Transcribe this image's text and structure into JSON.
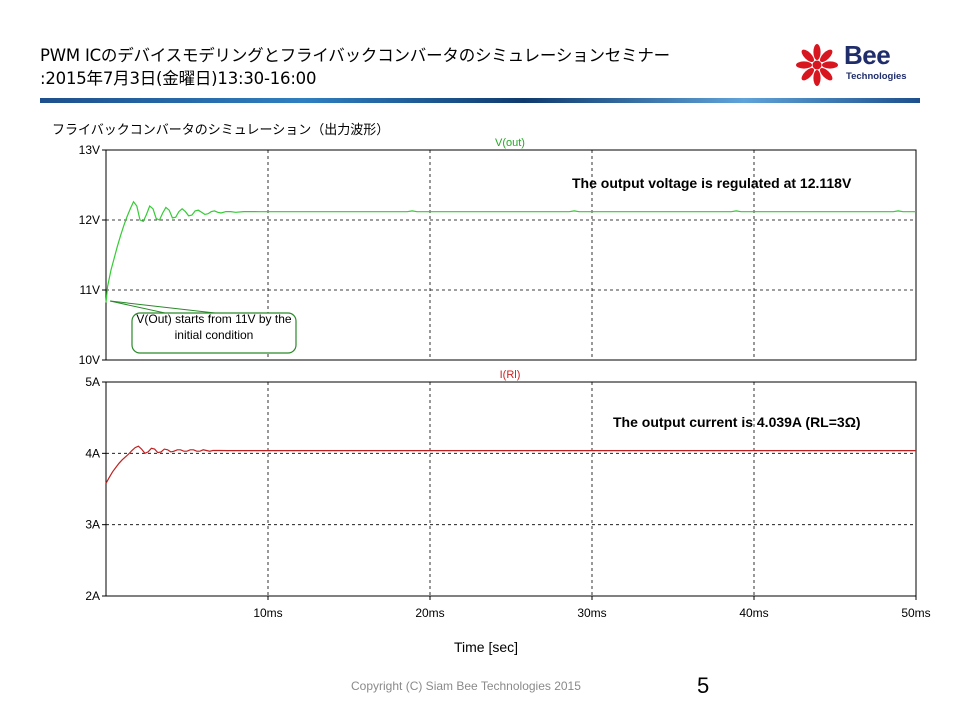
{
  "slide": {
    "title_line1": "PWM ICのデバイスモデリングとフライバックコンバータのシミュレーションセミナー",
    "title_line2": ":2015年7月3日(金曜日)13:30-16:00",
    "subtitle": "フライバックコンバータのシミュレーション（出力波形）",
    "footer": "Copyright (C) Siam Bee Technologies 2015",
    "page_number": "5",
    "logo_word": "Bee",
    "logo_sub": "Technologies"
  },
  "colors": {
    "brand": "#1f2d6b",
    "logo_red": "#d8161f",
    "vout": "#33cc33",
    "irl": "#cc2222",
    "grid": "#000000"
  },
  "chart_data": [
    {
      "type": "line",
      "series": [
        {
          "name": "V(out)",
          "x": [
            0,
            0.1,
            0.3,
            0.5,
            0.7,
            0.9,
            1.1,
            1.3,
            1.5,
            1.7,
            1.9,
            2.1,
            2.3,
            2.5,
            2.7,
            2.9,
            3.1,
            3.3,
            3.5,
            3.7,
            3.9,
            4.1,
            4.3,
            4.5,
            4.7,
            4.9,
            5.1,
            5.3,
            5.5,
            5.7,
            5.9,
            6.1,
            6.3,
            6.5,
            6.7,
            6.9,
            7.1,
            7.4,
            7.7,
            8.0,
            8.5,
            9.0,
            9.5,
            10.0,
            18.6,
            18.9,
            19.2,
            28.6,
            28.9,
            29.2,
            38.6,
            38.9,
            39.2,
            48.6,
            48.9,
            49.2,
            50.0
          ],
          "values": [
            10.82,
            11.05,
            11.28,
            11.45,
            11.62,
            11.78,
            11.92,
            12.05,
            12.16,
            12.26,
            12.2,
            12.0,
            11.98,
            12.08,
            12.2,
            12.16,
            12.02,
            12.0,
            12.1,
            12.18,
            12.14,
            12.03,
            12.04,
            12.12,
            12.16,
            12.12,
            12.06,
            12.07,
            12.13,
            12.14,
            12.11,
            12.08,
            12.09,
            12.12,
            12.13,
            12.11,
            12.1,
            12.12,
            12.12,
            12.11,
            12.12,
            12.12,
            12.118,
            12.118,
            12.118,
            12.13,
            12.118,
            12.118,
            12.13,
            12.118,
            12.118,
            12.13,
            12.118,
            12.118,
            12.13,
            12.118,
            12.118
          ]
        }
      ],
      "ylim": [
        10,
        13
      ],
      "yticks": [
        "13V",
        "12V",
        "11V",
        "10V"
      ],
      "xlim": [
        0,
        50
      ],
      "grid": true,
      "annotations": [
        "The output voltage is regulated at 12.118V",
        "V(Out) starts from 11V by the initial condition"
      ]
    },
    {
      "type": "line",
      "series": [
        {
          "name": "I(Rl)",
          "x": [
            0,
            0.2,
            0.4,
            0.6,
            0.8,
            1.0,
            1.2,
            1.4,
            1.6,
            1.8,
            2.0,
            2.2,
            2.4,
            2.6,
            2.8,
            3.0,
            3.2,
            3.4,
            3.6,
            3.8,
            4.0,
            4.2,
            4.4,
            4.6,
            4.8,
            5.0,
            5.2,
            5.4,
            5.6,
            5.8,
            6.0,
            6.2,
            6.4,
            6.6,
            6.8,
            7.0,
            7.5,
            8.0,
            50.0
          ],
          "values": [
            3.58,
            3.66,
            3.74,
            3.8,
            3.86,
            3.91,
            3.95,
            3.99,
            4.04,
            4.08,
            4.1,
            4.06,
            4.0,
            4.02,
            4.07,
            4.06,
            4.01,
            4.02,
            4.06,
            4.05,
            4.02,
            4.03,
            4.05,
            4.05,
            4.03,
            4.03,
            4.05,
            4.05,
            4.03,
            4.03,
            4.05,
            4.04,
            4.03,
            4.04,
            4.04,
            4.04,
            4.039,
            4.039,
            4.039
          ]
        }
      ],
      "ylim": [
        2,
        5
      ],
      "yticks": [
        "5A",
        "4A",
        "3A",
        "2A"
      ],
      "xlim": [
        0,
        50
      ],
      "xticks": [
        "10ms",
        "20ms",
        "30ms",
        "40ms",
        "50ms"
      ],
      "xlabel": "Time [sec]",
      "grid": true,
      "annotations": [
        "The output current is 4.039A (RL=3Ω)"
      ]
    }
  ]
}
